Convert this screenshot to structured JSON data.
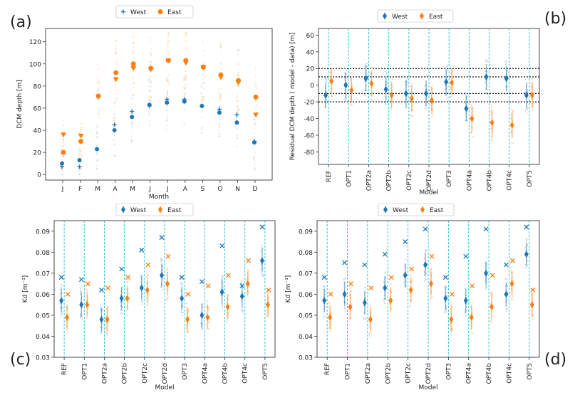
{
  "colors": {
    "west": "#1f77b4",
    "east": "#ff7f0e",
    "guide": "#17becf",
    "frame": "#333333"
  },
  "chart_data": [
    {
      "panel_label": "(a)",
      "type": "scatter",
      "xlabel": "Month",
      "ylabel": "DCM depth [m]",
      "categories": [
        "J",
        "F",
        "M",
        "A",
        "M",
        "J",
        "J",
        "A",
        "S",
        "O",
        "N",
        "D"
      ],
      "yticks": [
        0,
        20,
        40,
        60,
        80,
        100,
        120
      ],
      "ylim": [
        -5,
        132
      ],
      "legend": [
        {
          "label": "West",
          "marker": "plus"
        },
        {
          "label": "East",
          "marker": "circle"
        }
      ],
      "series": [
        {
          "name": "West observed",
          "marker": "plus",
          "values": [
            7,
            7,
            23,
            45,
            57,
            62,
            68,
            68,
            62,
            59,
            54,
            30
          ]
        },
        {
          "name": "West model",
          "marker": "dot",
          "values": [
            10,
            13,
            23,
            40,
            52,
            63,
            65,
            66,
            62,
            56,
            47,
            29
          ]
        },
        {
          "name": "East observed",
          "marker": "tri",
          "values": [
            36,
            35,
            70,
            86,
            96,
            95,
            103,
            101,
            97,
            88,
            83,
            54
          ]
        },
        {
          "name": "East model",
          "marker": "dot",
          "values": [
            20,
            30,
            71,
            92,
            100,
            96,
            103,
            103,
            97,
            90,
            85,
            70
          ]
        }
      ]
    },
    {
      "panel_label": "(b)",
      "type": "scatter",
      "xlabel": "Model",
      "ylabel": "Residual DCM depth ( model - data) [m]",
      "categories": [
        "REF",
        "OPT1",
        "OPT2a",
        "OPT2b",
        "OPT2c",
        "OPT2d",
        "OPT3",
        "OPT4a",
        "OPT4b",
        "OPT4c",
        "OPT5"
      ],
      "yticks": [
        -80,
        -60,
        -40,
        -20,
        0,
        20,
        40,
        60
      ],
      "ylim": [
        -95,
        68
      ],
      "reference_lines": [
        -20,
        -10,
        10,
        20
      ],
      "legend": [
        {
          "label": "West",
          "marker": "diamond"
        },
        {
          "label": "East",
          "marker": "diamond"
        }
      ],
      "series": [
        {
          "name": "West",
          "values": [
            -12,
            0,
            8,
            -5,
            -10,
            -10,
            4,
            -28,
            10,
            8,
            -12
          ]
        },
        {
          "name": "East",
          "values": [
            5,
            -6,
            2,
            -12,
            -16,
            -18,
            3,
            -40,
            -45,
            -48,
            -12
          ]
        }
      ]
    },
    {
      "panel_label": "(c)",
      "type": "scatter",
      "xlabel": "Model",
      "ylabel": "Kd [m⁻¹]",
      "categories": [
        "REF",
        "OPT1",
        "OPT2a",
        "OPT2b",
        "OPT2c",
        "OPT2d",
        "OPT3",
        "OPT4a",
        "OPT4b",
        "OPT4c",
        "OPT5"
      ],
      "yticks": [
        0.03,
        0.04,
        0.05,
        0.06,
        0.07,
        0.08,
        0.09
      ],
      "ylim": [
        0.03,
        0.095
      ],
      "legend": [
        {
          "label": "West",
          "marker": "diamond"
        },
        {
          "label": "East",
          "marker": "diamond"
        }
      ],
      "series": [
        {
          "name": "West model",
          "values": [
            0.057,
            0.055,
            0.048,
            0.058,
            0.063,
            0.069,
            0.058,
            0.05,
            0.061,
            0.059,
            0.076
          ]
        },
        {
          "name": "East model",
          "values": [
            0.049,
            0.055,
            0.048,
            0.058,
            0.062,
            0.065,
            0.048,
            0.049,
            0.054,
            0.065,
            0.055
          ]
        },
        {
          "name": "West reference",
          "values": [
            0.068,
            0.067,
            0.062,
            0.072,
            0.081,
            0.087,
            0.068,
            0.066,
            0.083,
            0.064,
            0.092
          ]
        },
        {
          "name": "East reference",
          "values": [
            0.06,
            0.065,
            0.063,
            0.068,
            0.074,
            0.078,
            0.06,
            0.064,
            0.069,
            0.076,
            0.062
          ]
        }
      ]
    },
    {
      "panel_label": "(d)",
      "type": "scatter",
      "xlabel": "Model",
      "ylabel": "Kd [m⁻¹]",
      "categories": [
        "REF",
        "OPT1",
        "OPT2a",
        "OPT2b",
        "OPT2c",
        "OPT2d",
        "OPT3",
        "OPT4a",
        "OPT4b",
        "OPT4c",
        "OPT5"
      ],
      "yticks": [
        0.03,
        0.04,
        0.05,
        0.06,
        0.07,
        0.08,
        0.09
      ],
      "ylim": [
        0.03,
        0.095
      ],
      "legend": [
        {
          "label": "West",
          "marker": "diamond"
        },
        {
          "label": "East",
          "marker": "diamond"
        }
      ],
      "series": [
        {
          "name": "West model",
          "values": [
            0.057,
            0.06,
            0.056,
            0.063,
            0.069,
            0.074,
            0.058,
            0.057,
            0.07,
            0.06,
            0.079
          ]
        },
        {
          "name": "East model",
          "values": [
            0.049,
            0.054,
            0.048,
            0.057,
            0.062,
            0.065,
            0.048,
            0.049,
            0.054,
            0.065,
            0.055
          ]
        },
        {
          "name": "West reference",
          "values": [
            0.068,
            0.075,
            0.074,
            0.079,
            0.085,
            0.091,
            0.068,
            0.078,
            0.091,
            0.074,
            0.092
          ]
        },
        {
          "name": "East reference",
          "values": [
            0.06,
            0.065,
            0.063,
            0.068,
            0.072,
            0.078,
            0.06,
            0.064,
            0.069,
            0.076,
            0.062
          ]
        }
      ]
    }
  ]
}
